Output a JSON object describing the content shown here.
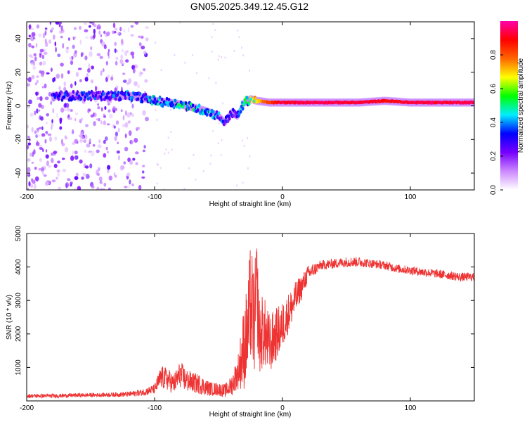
{
  "title": "GN05.2025.349.12.45.G12",
  "chart_data": [
    {
      "type": "heatmap",
      "subtype": "spectrogram",
      "xlabel": "Height of straight line (km)",
      "ylabel": "Frequency (Hz)",
      "xlim": [
        -200,
        150
      ],
      "ylim": [
        -50,
        50
      ],
      "xticks": [
        -200,
        -100,
        0,
        100
      ],
      "yticks": [
        -40,
        -20,
        0,
        20,
        40
      ],
      "colorbar": {
        "label": "Normalized spectral amplitude",
        "range": [
          0,
          1
        ],
        "ticks": [
          "0.0",
          "0.2",
          "0.4",
          "0.6",
          "0.8"
        ],
        "colormap": [
          "#ffffff",
          "#cc88ff",
          "#7700ff",
          "#0000ff",
          "#00eeff",
          "#00ff00",
          "#ffff00",
          "#ff6600",
          "#ff0000",
          "#ff00aa"
        ]
      },
      "ridge": {
        "height_km": [
          -180,
          -160,
          -140,
          -120,
          -110,
          -100,
          -90,
          -80,
          -70,
          -60,
          -50,
          -45,
          -40,
          -35,
          -30,
          -25,
          -20,
          -10,
          0,
          20,
          40,
          60,
          80,
          100,
          120,
          150
        ],
        "frequency_hz": [
          6,
          6,
          6,
          6,
          5,
          3,
          2,
          1,
          -1,
          -3,
          -6,
          -10,
          -4,
          -6,
          2,
          4,
          3,
          2,
          2,
          2,
          2,
          2,
          3,
          2,
          2,
          2
        ],
        "amplitude": [
          0.3,
          0.3,
          0.3,
          0.35,
          0.35,
          0.4,
          0.4,
          0.45,
          0.45,
          0.4,
          0.35,
          0.3,
          0.3,
          0.3,
          0.45,
          0.55,
          0.7,
          0.85,
          0.95,
          0.95,
          0.95,
          0.95,
          0.9,
          0.95,
          0.95,
          0.95
        ]
      },
      "noise_region_km": [
        -200,
        -105
      ]
    },
    {
      "type": "line",
      "xlabel": "Height of straight line (km)",
      "ylabel": "SNR (10 * v/v)",
      "xlim": [
        -200,
        150
      ],
      "ylim": [
        0,
        5000
      ],
      "xticks": [
        -200,
        -100,
        0,
        100
      ],
      "yticks": [
        1000,
        2000,
        3000,
        4000,
        5000
      ],
      "line_color": "#ee3333",
      "series": [
        {
          "name": "SNR",
          "x": [
            -200,
            -180,
            -160,
            -140,
            -120,
            -110,
            -100,
            -95,
            -90,
            -85,
            -80,
            -75,
            -70,
            -65,
            -60,
            -55,
            -50,
            -45,
            -40,
            -35,
            -30,
            -27,
            -25,
            -22,
            -20,
            -18,
            -15,
            -10,
            -5,
            0,
            5,
            10,
            20,
            30,
            40,
            50,
            60,
            70,
            80,
            90,
            100,
            110,
            120,
            130,
            140,
            150
          ],
          "values": [
            150,
            150,
            170,
            180,
            200,
            250,
            350,
            700,
            650,
            500,
            800,
            600,
            550,
            500,
            400,
            350,
            350,
            300,
            450,
            800,
            1500,
            2000,
            2800,
            2200,
            3200,
            1800,
            2000,
            1600,
            1900,
            2200,
            2600,
            3000,
            3800,
            4050,
            4100,
            4150,
            4150,
            4100,
            4050,
            3950,
            3900,
            3850,
            3800,
            3750,
            3700,
            3700
          ],
          "amplitude": [
            60,
            60,
            60,
            60,
            80,
            100,
            150,
            350,
            350,
            300,
            400,
            350,
            300,
            300,
            250,
            200,
            200,
            200,
            300,
            500,
            1300,
            1500,
            1800,
            1600,
            1500,
            1200,
            1100,
            900,
            800,
            700,
            600,
            500,
            250,
            150,
            150,
            150,
            150,
            130,
            130,
            130,
            130,
            130,
            130,
            130,
            130,
            130
          ]
        }
      ]
    }
  ]
}
